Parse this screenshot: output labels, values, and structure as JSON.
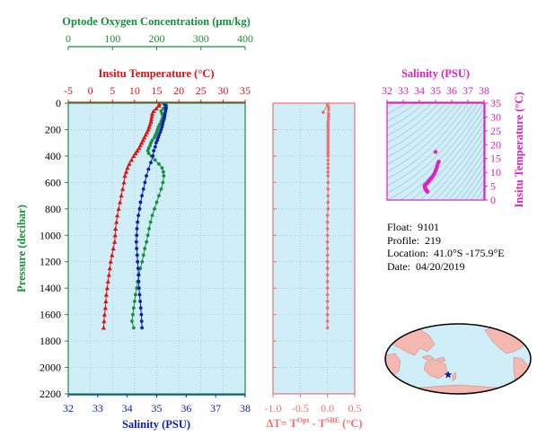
{
  "colors": {
    "plot_bg": "#d0eef8",
    "temperature": "#e01010",
    "salinity": "#0a1eb4",
    "oxygen": "#16903a",
    "pressure_axis": "#16903a",
    "delta": "#f07070",
    "ts": "#e020c0",
    "land": "#f4b8b0",
    "ocean": "#d0eef8"
  },
  "main_chart": {
    "oxygen_axis": {
      "title": "Optode Oxygen Concentration (μm/kg)",
      "range": [
        0,
        400
      ],
      "ticks": [
        0,
        100,
        200,
        300,
        400
      ],
      "tick_labels": [
        "0",
        "100",
        "200",
        "300",
        "400"
      ]
    },
    "temperature_axis": {
      "title": "Insitu Temperature (°C)",
      "range": [
        -5,
        35
      ],
      "ticks": [
        -5,
        0,
        5,
        10,
        15,
        20,
        25,
        30,
        35
      ],
      "tick_labels": [
        "-5",
        "0",
        "5",
        "10",
        "15",
        "20",
        "25",
        "30",
        "35"
      ]
    },
    "salinity_axis": {
      "title": "Salinity (PSU)",
      "range": [
        32,
        38
      ],
      "ticks": [
        32,
        33,
        34,
        35,
        36,
        37,
        38
      ],
      "tick_labels": [
        "32",
        "33",
        "34",
        "35",
        "36",
        "37",
        "38"
      ]
    },
    "pressure_axis": {
      "title": "Pressure (decibar)",
      "range": [
        0,
        2200
      ],
      "ticks": [
        0,
        200,
        400,
        600,
        800,
        1000,
        1200,
        1400,
        1600,
        1800,
        2000,
        2200
      ],
      "tick_labels": [
        "0",
        "200",
        "400",
        "600",
        "800",
        "1000",
        "1200",
        "1400",
        "1600",
        "1800",
        "2000",
        "2200"
      ]
    }
  },
  "chart_data": [
    {
      "type": "line",
      "title": "",
      "ylabel": "Pressure (decibar)",
      "ylim": [
        2200,
        0
      ],
      "series": [
        {
          "name": "Insitu Temperature (°C)",
          "xlim": [
            -5,
            35
          ],
          "points": [
            [
              15.6,
              5
            ],
            [
              15.5,
              20
            ],
            [
              14.9,
              40
            ],
            [
              14.3,
              60
            ],
            [
              14.0,
              80
            ],
            [
              13.9,
              100
            ],
            [
              13.8,
              120
            ],
            [
              13.7,
              140
            ],
            [
              13.5,
              160
            ],
            [
              13.3,
              180
            ],
            [
              13.1,
              200
            ],
            [
              12.8,
              220
            ],
            [
              12.5,
              240
            ],
            [
              12.2,
              260
            ],
            [
              11.9,
              280
            ],
            [
              11.6,
              300
            ],
            [
              11.3,
              320
            ],
            [
              11.0,
              340
            ],
            [
              10.6,
              360
            ],
            [
              10.2,
              380
            ],
            [
              9.8,
              400
            ],
            [
              9.3,
              430
            ],
            [
              8.8,
              460
            ],
            [
              8.4,
              490
            ],
            [
              8.1,
              520
            ],
            [
              7.8,
              550
            ],
            [
              7.6,
              600
            ],
            [
              7.3,
              650
            ],
            [
              7.0,
              700
            ],
            [
              6.7,
              750
            ],
            [
              6.4,
              800
            ],
            [
              6.1,
              850
            ],
            [
              5.9,
              900
            ],
            [
              5.7,
              950
            ],
            [
              5.6,
              1000
            ],
            [
              5.5,
              1050
            ],
            [
              5.2,
              1100
            ],
            [
              4.9,
              1150
            ],
            [
              4.6,
              1200
            ],
            [
              4.4,
              1250
            ],
            [
              4.2,
              1300
            ],
            [
              4.0,
              1350
            ],
            [
              3.8,
              1400
            ],
            [
              3.6,
              1450
            ],
            [
              3.5,
              1500
            ],
            [
              3.4,
              1550
            ],
            [
              3.2,
              1600
            ],
            [
              3.1,
              1650
            ],
            [
              3.0,
              1700
            ]
          ]
        },
        {
          "name": "Salinity (PSU)",
          "xlim": [
            32,
            38
          ],
          "points": [
            [
              35.25,
              5
            ],
            [
              35.3,
              20
            ],
            [
              35.32,
              40
            ],
            [
              35.3,
              60
            ],
            [
              35.28,
              80
            ],
            [
              35.27,
              100
            ],
            [
              35.25,
              120
            ],
            [
              35.22,
              140
            ],
            [
              35.2,
              160
            ],
            [
              35.18,
              180
            ],
            [
              35.15,
              200
            ],
            [
              35.12,
              220
            ],
            [
              35.08,
              240
            ],
            [
              35.05,
              260
            ],
            [
              35.02,
              280
            ],
            [
              34.98,
              300
            ],
            [
              34.95,
              330
            ],
            [
              34.9,
              360
            ],
            [
              34.87,
              400
            ],
            [
              34.8,
              450
            ],
            [
              34.72,
              500
            ],
            [
              34.65,
              550
            ],
            [
              34.6,
              600
            ],
            [
              34.55,
              650
            ],
            [
              34.5,
              700
            ],
            [
              34.45,
              750
            ],
            [
              34.42,
              800
            ],
            [
              34.38,
              850
            ],
            [
              34.35,
              900
            ],
            [
              34.33,
              950
            ],
            [
              34.32,
              1000
            ],
            [
              34.31,
              1050
            ],
            [
              34.32,
              1100
            ],
            [
              34.34,
              1150
            ],
            [
              34.35,
              1200
            ],
            [
              34.37,
              1250
            ],
            [
              34.38,
              1300
            ],
            [
              34.39,
              1350
            ],
            [
              34.4,
              1400
            ],
            [
              34.42,
              1450
            ],
            [
              34.44,
              1500
            ],
            [
              34.46,
              1550
            ],
            [
              34.48,
              1600
            ],
            [
              34.49,
              1650
            ],
            [
              34.5,
              1700
            ]
          ]
        },
        {
          "name": "Optode Oxygen Concentration (μm/kg)",
          "xlim": [
            0,
            400
          ],
          "points": [
            [
              220,
              5
            ],
            [
              222,
              20
            ],
            [
              215,
              40
            ],
            [
              210,
              60
            ],
            [
              212,
              80
            ],
            [
              214,
              100
            ],
            [
              212,
              120
            ],
            [
              210,
              140
            ],
            [
              207,
              160
            ],
            [
              204,
              180
            ],
            [
              202,
              200
            ],
            [
              200,
              220
            ],
            [
              197,
              240
            ],
            [
              195,
              260
            ],
            [
              190,
              280
            ],
            [
              187,
              300
            ],
            [
              185,
              320
            ],
            [
              182,
              340
            ],
            [
              180,
              360
            ],
            [
              182,
              380
            ],
            [
              188,
              400
            ],
            [
              196,
              430
            ],
            [
              205,
              460
            ],
            [
              212,
              490
            ],
            [
              215,
              520
            ],
            [
              216,
              550
            ],
            [
              214,
              600
            ],
            [
              210,
              650
            ],
            [
              205,
              700
            ],
            [
              200,
              750
            ],
            [
              195,
              800
            ],
            [
              190,
              850
            ],
            [
              186,
              900
            ],
            [
              183,
              950
            ],
            [
              180,
              1000
            ],
            [
              177,
              1050
            ],
            [
              173,
              1100
            ],
            [
              170,
              1150
            ],
            [
              167,
              1200
            ],
            [
              163,
              1250
            ],
            [
              160,
              1300
            ],
            [
              157,
              1350
            ],
            [
              155,
              1400
            ],
            [
              152,
              1450
            ],
            [
              150,
              1500
            ],
            [
              148,
              1550
            ],
            [
              146,
              1600
            ],
            [
              144,
              1650
            ],
            [
              148,
              1700
            ]
          ]
        }
      ]
    },
    {
      "type": "scatter",
      "title": "",
      "xlabel": "ΔT= T^Opt - T^SBE (°C)",
      "xlim": [
        -1.0,
        0.5
      ],
      "ylim": [
        2200,
        0
      ],
      "x_tick_labels": [
        "-1.0",
        "-0.5",
        "0.0",
        "0.5"
      ],
      "xlabel_parts": {
        "prefix": "ΔT= T",
        "sup1": "Opt",
        "mid": " - T",
        "sup2": "SBE",
        "suffix": " (°C)"
      },
      "points": [
        [
          -0.08,
          70
        ],
        [
          0.0,
          10
        ],
        [
          0.02,
          30
        ],
        [
          0.02,
          50
        ],
        [
          0.02,
          80
        ],
        [
          0.02,
          100
        ],
        [
          0.02,
          120
        ],
        [
          0.01,
          140
        ],
        [
          0.01,
          160
        ],
        [
          0.01,
          180
        ],
        [
          0.01,
          200
        ],
        [
          0.01,
          220
        ],
        [
          0.01,
          240
        ],
        [
          0.01,
          260
        ],
        [
          0.01,
          280
        ],
        [
          0.01,
          300
        ],
        [
          0.01,
          320
        ],
        [
          0.01,
          340
        ],
        [
          0.01,
          360
        ],
        [
          0.01,
          380
        ],
        [
          0.01,
          400
        ],
        [
          0.01,
          430
        ],
        [
          0.01,
          460
        ],
        [
          0.01,
          490
        ],
        [
          0.01,
          520
        ],
        [
          0.01,
          550
        ],
        [
          0.01,
          600
        ],
        [
          0.01,
          650
        ],
        [
          0.01,
          700
        ],
        [
          0.01,
          750
        ],
        [
          0.01,
          800
        ],
        [
          0.0,
          850
        ],
        [
          0.0,
          900
        ],
        [
          0.0,
          950
        ],
        [
          0.0,
          1000
        ],
        [
          0.0,
          1050
        ],
        [
          0.0,
          1100
        ],
        [
          0.0,
          1150
        ],
        [
          0.0,
          1200
        ],
        [
          0.0,
          1250
        ],
        [
          0.0,
          1300
        ],
        [
          0.0,
          1350
        ],
        [
          0.0,
          1400
        ],
        [
          0.0,
          1450
        ],
        [
          0.0,
          1500
        ],
        [
          0.0,
          1550
        ],
        [
          0.0,
          1600
        ],
        [
          0.0,
          1650
        ],
        [
          0.0,
          1700
        ]
      ]
    },
    {
      "type": "scatter",
      "title": "Salinity (PSU)",
      "xlabel": "Salinity (PSU)",
      "ylabel": "Insitu Temperature (°C)",
      "xlim": [
        32,
        38
      ],
      "ylim": [
        0,
        35
      ],
      "x_tick_labels": [
        "32",
        "33",
        "34",
        "35",
        "36",
        "37",
        "38"
      ],
      "y_tick_labels": [
        "0",
        "5",
        "10",
        "15",
        "20",
        "25",
        "30",
        "35"
      ],
      "points": [
        [
          35.0,
          17.4
        ],
        [
          35.2,
          13.9
        ],
        [
          35.15,
          13.3
        ],
        [
          35.1,
          12.2
        ],
        [
          35.05,
          11.3
        ],
        [
          35.0,
          10.6
        ],
        [
          34.95,
          9.8
        ],
        [
          34.9,
          9.3
        ],
        [
          34.85,
          8.8
        ],
        [
          34.8,
          8.4
        ],
        [
          34.75,
          8.1
        ],
        [
          34.72,
          7.8
        ],
        [
          34.68,
          7.6
        ],
        [
          34.64,
          7.3
        ],
        [
          34.6,
          7.0
        ],
        [
          34.56,
          6.7
        ],
        [
          34.52,
          6.4
        ],
        [
          34.48,
          6.1
        ],
        [
          34.44,
          5.9
        ],
        [
          34.41,
          5.7
        ],
        [
          34.38,
          5.6
        ],
        [
          34.35,
          5.5
        ],
        [
          34.33,
          5.2
        ],
        [
          34.33,
          4.9
        ],
        [
          34.34,
          4.6
        ],
        [
          34.35,
          4.4
        ],
        [
          34.37,
          4.2
        ],
        [
          34.38,
          4.0
        ],
        [
          34.4,
          3.8
        ],
        [
          34.42,
          3.6
        ],
        [
          34.44,
          3.5
        ],
        [
          34.46,
          3.4
        ],
        [
          34.48,
          3.2
        ],
        [
          34.49,
          3.1
        ],
        [
          34.5,
          3.0
        ]
      ]
    }
  ],
  "info": {
    "float_label": "Float:",
    "float_value": "9101",
    "profile_label": "Profile:",
    "profile_value": "219",
    "location_label": "Location:",
    "location_value": "41.0°S  -175.9°E",
    "date_label": "Date:",
    "date_value": "04/20/2019"
  },
  "map": {
    "marker_lat": -41.0,
    "marker_lon": -175.9,
    "marker_icon": "star-icon"
  }
}
